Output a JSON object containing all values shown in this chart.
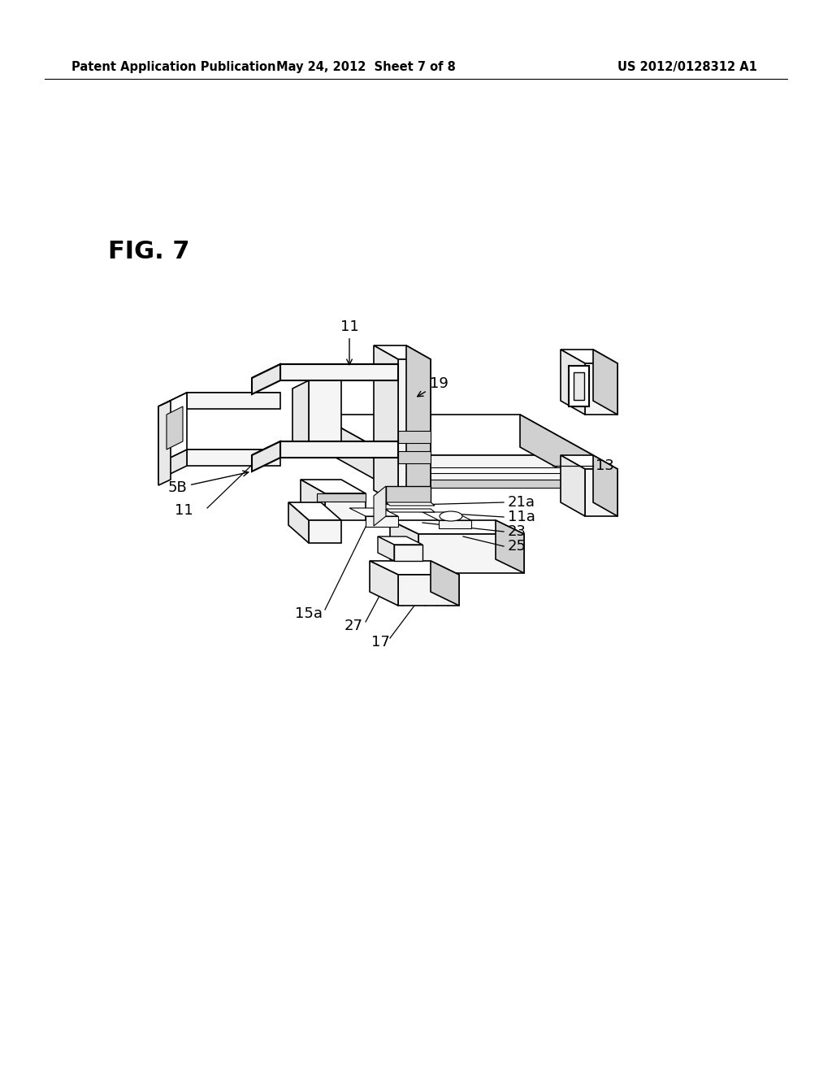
{
  "bg_color": "#ffffff",
  "header_left": "Patent Application Publication",
  "header_mid": "May 24, 2012  Sheet 7 of 8",
  "header_right": "US 2012/0128312 A1",
  "fig_label": "FIG. 7",
  "line_color": "#000000",
  "fill_white": "#ffffff",
  "fill_light": "#f5f5f5",
  "fill_mid": "#e8e8e8",
  "fill_dark": "#d0d0d0"
}
